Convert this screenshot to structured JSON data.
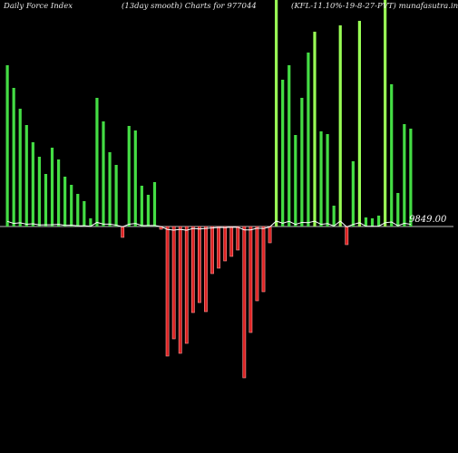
{
  "header": {
    "left": "Daily Force  Index",
    "center": "(13day smooth) Charts for 977044",
    "right": "(KFL-11.10%-19-8-27-PVT) munafasutra.in"
  },
  "chart_data": {
    "type": "bar",
    "title": "",
    "baseline_label": "9849.00",
    "values": [
      1.78,
      1.53,
      1.3,
      1.12,
      0.93,
      0.77,
      0.58,
      0.87,
      0.74,
      0.55,
      0.46,
      0.36,
      0.28,
      0.09,
      1.42,
      1.16,
      0.82,
      0.68,
      -0.12,
      1.11,
      1.06,
      0.45,
      0.35,
      0.49,
      -0.03,
      -1.43,
      -1.24,
      -1.4,
      -1.29,
      -0.95,
      -0.84,
      -0.94,
      -0.52,
      -0.46,
      -0.38,
      -0.33,
      -0.26,
      -1.67,
      -1.17,
      -0.82,
      -0.72,
      -0.18,
      2.55,
      1.62,
      1.78,
      1.01,
      1.42,
      1.92,
      2.15,
      1.05,
      1.02,
      0.23,
      2.22,
      -0.2,
      0.72,
      2.27,
      0.1,
      0.09,
      0.12,
      2.7,
      1.57,
      0.37,
      1.13,
      1.08
    ],
    "colors": {
      "positive": "#44dd44",
      "positive_bright": "#99ff55",
      "negative": "#dd2222",
      "baseline": "#bbbbbb",
      "smooth": "#ffffff"
    }
  }
}
